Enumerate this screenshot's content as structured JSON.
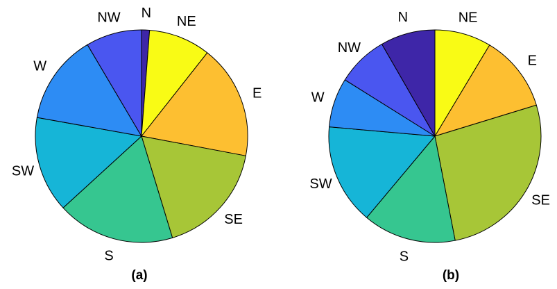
{
  "chart_data": [
    {
      "type": "pie",
      "title": "",
      "panel_label": "(a)",
      "slices": [
        {
          "label": "N",
          "value": 4,
          "color": "#3e26a8"
        },
        {
          "label": "NE",
          "value": 31,
          "color": "#f9fb15"
        },
        {
          "label": "E",
          "value": 57,
          "color": "#fdbf31"
        },
        {
          "label": "SE",
          "value": 57,
          "color": "#a7c637"
        },
        {
          "label": "S",
          "value": 59,
          "color": "#36c690"
        },
        {
          "label": "SW",
          "value": 48,
          "color": "#16b5d7"
        },
        {
          "label": "W",
          "value": 45,
          "color": "#2d8cf4"
        },
        {
          "label": "NW",
          "value": 28,
          "color": "#4a56f0"
        }
      ]
    },
    {
      "type": "pie",
      "title": "",
      "panel_label": "(b)",
      "slices": [
        {
          "label": "NE",
          "value": 31,
          "color": "#f9fb15"
        },
        {
          "label": "E",
          "value": 42,
          "color": "#fdbf31"
        },
        {
          "label": "SE",
          "value": 96,
          "color": "#a7c637"
        },
        {
          "label": "S",
          "value": 51,
          "color": "#36c690"
        },
        {
          "label": "SW",
          "value": 55,
          "color": "#16b5d7"
        },
        {
          "label": "W",
          "value": 27,
          "color": "#2d8cf4"
        },
        {
          "label": "NW",
          "value": 28,
          "color": "#4a56f0"
        },
        {
          "label": "N",
          "value": 30,
          "color": "#3e26a8"
        }
      ]
    }
  ]
}
